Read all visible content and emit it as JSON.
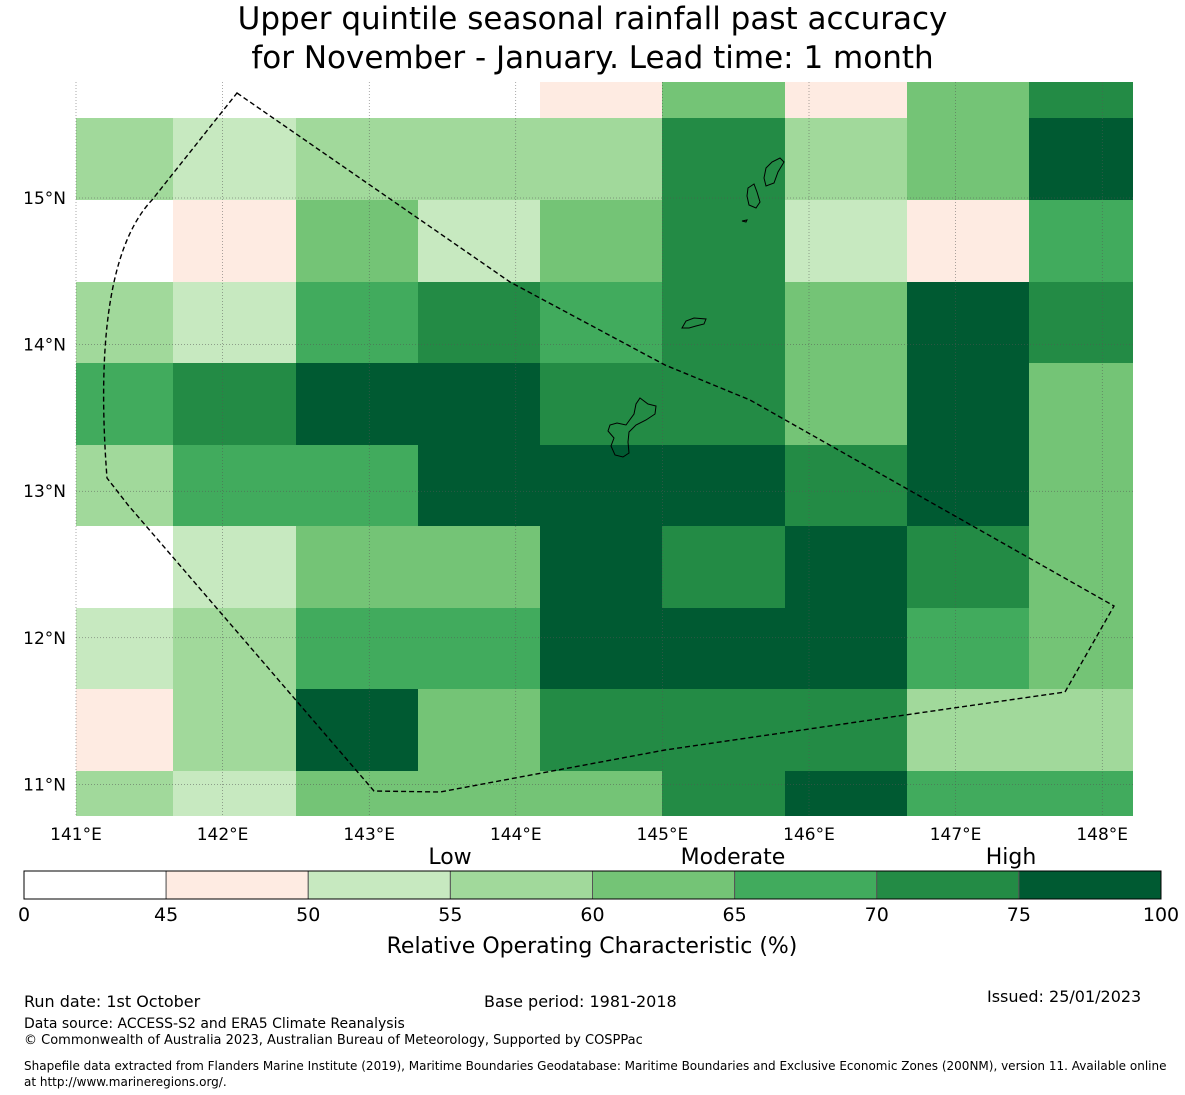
{
  "title": {
    "line1": "Upper quintile seasonal rainfall past accuracy",
    "line2": "for November - January. Lead time: 1 month"
  },
  "map": {
    "lon_labels": [
      "141°E",
      "142°E",
      "143°E",
      "144°E",
      "145°E",
      "146°E",
      "147°E",
      "148°E"
    ],
    "lat_labels": [
      "15°N",
      "14°N",
      "13°N",
      "12°N",
      "11°N"
    ],
    "lon_values": [
      141,
      142,
      143,
      144,
      145,
      146,
      147,
      148
    ],
    "lat_values": [
      15,
      14,
      13,
      12,
      11
    ],
    "extent": {
      "lon": [
        141,
        148.2
      ],
      "lat": [
        10.8,
        15.8
      ]
    },
    "grid_cells": {
      "note_levels": "0:<45 1:45-50 2:50-55 3:55-60 4:60-65 5:65-70 6:70-75 7:75-100",
      "rows": [
        [
          0,
          0,
          0,
          0,
          1,
          4,
          1,
          4,
          6
        ],
        [
          3,
          2,
          3,
          3,
          3,
          6,
          3,
          4,
          7
        ],
        [
          0,
          1,
          4,
          2,
          4,
          6,
          2,
          1,
          5
        ],
        [
          3,
          2,
          5,
          6,
          5,
          6,
          4,
          7,
          6
        ],
        [
          5,
          6,
          7,
          7,
          6,
          6,
          4,
          7,
          4
        ],
        [
          3,
          5,
          5,
          7,
          7,
          7,
          6,
          7,
          4
        ],
        [
          0,
          2,
          4,
          4,
          7,
          6,
          7,
          6,
          4
        ],
        [
          2,
          3,
          5,
          5,
          7,
          7,
          7,
          5,
          4
        ],
        [
          1,
          3,
          7,
          4,
          6,
          6,
          6,
          3,
          3
        ],
        [
          3,
          2,
          4,
          4,
          4,
          6,
          7,
          5,
          5
        ]
      ]
    }
  },
  "colorbar": {
    "category_labels": [
      "Low",
      "Moderate",
      "High"
    ],
    "tick_labels": [
      "0",
      "45",
      "50",
      "55",
      "60",
      "65",
      "70",
      "75",
      "100"
    ],
    "colors": [
      "#ffffff",
      "#feebe2",
      "#c7e9c0",
      "#a1d99b",
      "#74c476",
      "#41ab5d",
      "#238b45",
      "#005a32"
    ],
    "axis_label": "Relative Operating Characteristic (%)"
  },
  "footer": {
    "run_date": "Run date: 1st October",
    "base_period": "Base period: 1981-2018",
    "issued": "Issued: 25/01/2023",
    "data_source": "Data source: ACCESS-S2 and ERA5 Climate Reanalysis",
    "copyright": "© Commonwealth of Australia 2023, Australian Bureau of Meteorology, Supported by COSPPac",
    "shapefile": "Shapefile data extracted from Flanders Marine Institute (2019), Maritime Boundaries Geodatabase: Maritime Boundaries and Exclusive Economic Zones (200NM), version 11. Available online at http://www.marineregions.org/."
  }
}
